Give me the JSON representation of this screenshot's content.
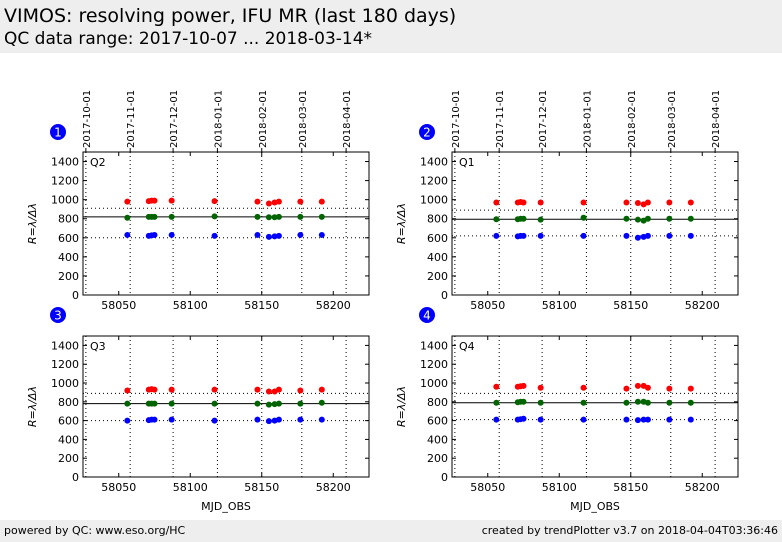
{
  "page": {
    "title": "VIMOS: resolving power, IFU MR (last 180 days)",
    "subtitle": "QC data range: 2017-10-07 ... 2018-03-14*",
    "footer_left": "powered by QC: www.eso.org/HC",
    "footer_right": "created by trendPlotter v3.7 on 2018-04-04T03:36:46"
  },
  "colors": {
    "red": "#ff0000",
    "green": "#006400",
    "blue": "#0000ff",
    "badge": "#0000ff",
    "header_bg": "#eeeeee"
  },
  "chart_data": [
    {
      "type": "scatter",
      "panel_number": "1",
      "quadrant_label": "Q2",
      "xlabel": "",
      "ylabel": "R=λ/Δλ",
      "xlim": [
        58025,
        58225
      ],
      "ylim": [
        0,
        1500
      ],
      "xticks": [
        58050,
        58100,
        58150,
        58200
      ],
      "yticks": [
        0,
        200,
        400,
        600,
        800,
        1000,
        1200,
        1400
      ],
      "top_axis_dates": [
        "2017-10-01",
        "2017-11-01",
        "2017-12-01",
        "2018-01-01",
        "2018-02-01",
        "2018-03-01",
        "2018-04-01"
      ],
      "reference_lines": {
        "solid": 820,
        "dotted_upper": 910,
        "dotted_lower": 600
      },
      "series": [
        {
          "color": "red",
          "x": [
            58056,
            58071,
            58073,
            58075,
            58087,
            58117,
            58147,
            58155,
            58159,
            58162,
            58177,
            58192
          ],
          "y": [
            980,
            985,
            990,
            990,
            990,
            985,
            980,
            960,
            970,
            980,
            980,
            980
          ]
        },
        {
          "color": "green",
          "x": [
            58056,
            58071,
            58073,
            58075,
            58087,
            58117,
            58147,
            58155,
            58159,
            58162,
            58177,
            58192
          ],
          "y": [
            810,
            820,
            820,
            820,
            820,
            825,
            820,
            815,
            815,
            820,
            820,
            820
          ]
        },
        {
          "color": "blue",
          "x": [
            58056,
            58071,
            58073,
            58075,
            58087,
            58117,
            58147,
            58155,
            58159,
            58162,
            58177,
            58192
          ],
          "y": [
            630,
            620,
            625,
            630,
            630,
            620,
            630,
            610,
            615,
            620,
            630,
            630
          ]
        }
      ]
    },
    {
      "type": "scatter",
      "panel_number": "2",
      "quadrant_label": "Q1",
      "xlabel": "",
      "ylabel": "R=λ/Δλ",
      "xlim": [
        58025,
        58225
      ],
      "ylim": [
        0,
        1500
      ],
      "xticks": [
        58050,
        58100,
        58150,
        58200
      ],
      "yticks": [
        0,
        200,
        400,
        600,
        800,
        1000,
        1200,
        1400
      ],
      "top_axis_dates": [
        "2017-10-01",
        "2017-11-01",
        "2017-12-01",
        "2018-01-01",
        "2018-02-01",
        "2018-03-01",
        "2018-04-01"
      ],
      "reference_lines": {
        "solid": 795,
        "dotted_upper": 890,
        "dotted_lower": 620
      },
      "series": [
        {
          "color": "red",
          "x": [
            58056,
            58071,
            58073,
            58075,
            58087,
            58117,
            58147,
            58155,
            58159,
            58162,
            58177,
            58192
          ],
          "y": [
            970,
            970,
            975,
            970,
            970,
            970,
            970,
            965,
            950,
            970,
            970,
            970
          ]
        },
        {
          "color": "green",
          "x": [
            58056,
            58071,
            58073,
            58075,
            58087,
            58117,
            58147,
            58155,
            58159,
            58162,
            58177,
            58192
          ],
          "y": [
            795,
            795,
            800,
            800,
            790,
            810,
            800,
            790,
            780,
            800,
            800,
            800
          ]
        },
        {
          "color": "blue",
          "x": [
            58056,
            58071,
            58073,
            58075,
            58087,
            58117,
            58147,
            58155,
            58159,
            58162,
            58177,
            58192
          ],
          "y": [
            620,
            615,
            620,
            620,
            620,
            620,
            620,
            600,
            610,
            620,
            620,
            620
          ]
        }
      ]
    },
    {
      "type": "scatter",
      "panel_number": "3",
      "quadrant_label": "Q3",
      "xlabel": "MJD_OBS",
      "ylabel": "R=λ/Δλ",
      "xlim": [
        58025,
        58225
      ],
      "ylim": [
        0,
        1500
      ],
      "xticks": [
        58050,
        58100,
        58150,
        58200
      ],
      "yticks": [
        0,
        200,
        400,
        600,
        800,
        1000,
        1200,
        1400
      ],
      "reference_lines": {
        "solid": 780,
        "dotted_upper": 890,
        "dotted_lower": 600
      },
      "series": [
        {
          "color": "red",
          "x": [
            58056,
            58071,
            58073,
            58075,
            58087,
            58117,
            58147,
            58155,
            58159,
            58162,
            58177,
            58192
          ],
          "y": [
            920,
            930,
            935,
            930,
            930,
            930,
            930,
            910,
            910,
            930,
            920,
            930
          ]
        },
        {
          "color": "green",
          "x": [
            58056,
            58071,
            58073,
            58075,
            58087,
            58117,
            58147,
            58155,
            58159,
            58162,
            58177,
            58192
          ],
          "y": [
            780,
            780,
            780,
            780,
            780,
            780,
            780,
            770,
            775,
            780,
            780,
            790
          ]
        },
        {
          "color": "blue",
          "x": [
            58056,
            58071,
            58073,
            58075,
            58087,
            58117,
            58147,
            58155,
            58159,
            58162,
            58177,
            58192
          ],
          "y": [
            600,
            605,
            610,
            610,
            610,
            600,
            610,
            595,
            600,
            610,
            610,
            610
          ]
        }
      ]
    },
    {
      "type": "scatter",
      "panel_number": "4",
      "quadrant_label": "Q4",
      "xlabel": "MJD_OBS",
      "ylabel": "R=λ/Δλ",
      "xlim": [
        58025,
        58225
      ],
      "ylim": [
        0,
        1500
      ],
      "xticks": [
        58050,
        58100,
        58150,
        58200
      ],
      "yticks": [
        0,
        200,
        400,
        600,
        800,
        1000,
        1200,
        1400
      ],
      "reference_lines": {
        "solid": 790,
        "dotted_upper": 890,
        "dotted_lower": 610
      },
      "series": [
        {
          "color": "red",
          "x": [
            58056,
            58071,
            58073,
            58075,
            58087,
            58117,
            58147,
            58155,
            58159,
            58162,
            58177,
            58192
          ],
          "y": [
            960,
            960,
            965,
            970,
            950,
            950,
            940,
            970,
            970,
            950,
            940,
            940
          ]
        },
        {
          "color": "green",
          "x": [
            58056,
            58071,
            58073,
            58075,
            58087,
            58117,
            58147,
            58155,
            58159,
            58162,
            58177,
            58192
          ],
          "y": [
            790,
            795,
            800,
            800,
            790,
            790,
            790,
            800,
            800,
            790,
            790,
            790
          ]
        },
        {
          "color": "blue",
          "x": [
            58056,
            58071,
            58073,
            58075,
            58087,
            58117,
            58147,
            58155,
            58159,
            58162,
            58177,
            58192
          ],
          "y": [
            610,
            610,
            615,
            620,
            610,
            610,
            610,
            605,
            610,
            610,
            610,
            610
          ]
        }
      ]
    }
  ]
}
